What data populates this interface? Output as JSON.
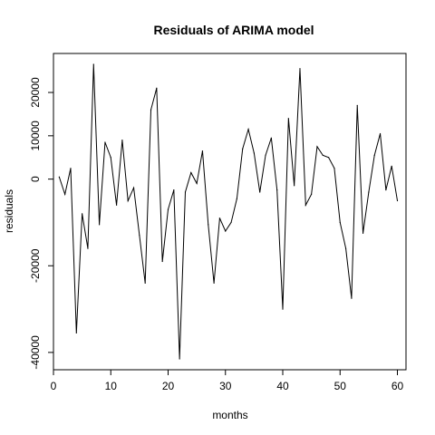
{
  "chart_data": {
    "type": "line",
    "title": "Residuals of ARIMA model",
    "xlabel": "months",
    "ylabel": "residuals",
    "xlim": [
      0,
      61.5
    ],
    "ylim": [
      -44000,
      29000
    ],
    "x_ticks": [
      0,
      10,
      20,
      30,
      40,
      50,
      60
    ],
    "y_ticks": [
      -40000,
      -20000,
      0,
      10000,
      20000
    ],
    "y_tick_labels": [
      "-40000",
      "-20000",
      "0",
      "10000",
      "20000"
    ],
    "grid": false,
    "legend": "none",
    "series": [
      {
        "x": [
          1,
          2,
          3,
          4,
          5,
          6,
          7,
          8,
          9,
          10,
          11,
          12,
          13,
          14,
          15,
          16,
          17,
          18,
          19,
          20,
          21,
          22,
          23,
          24,
          25,
          26,
          27,
          28,
          29,
          30,
          31,
          32,
          33,
          34,
          35,
          36,
          37,
          38,
          39,
          40,
          41,
          42,
          43,
          44,
          45,
          46,
          47,
          48,
          49,
          50,
          51,
          52,
          53,
          54,
          55,
          56,
          57,
          58,
          59,
          60
        ],
        "values": [
          500,
          -3500,
          2500,
          -35500,
          -8000,
          -16000,
          26500,
          -10500,
          8500,
          5000,
          -6000,
          9000,
          -5000,
          -2000,
          -13000,
          -24000,
          16000,
          21000,
          -19000,
          -7000,
          -2500,
          -41500,
          -3000,
          1500,
          -1000,
          6500,
          -10500,
          -24000,
          -9000,
          -12000,
          -10000,
          -4500,
          7000,
          11500,
          6000,
          -3000,
          5500,
          9500,
          -2500,
          -30000,
          14000,
          -1500,
          25500,
          -6000,
          -3500,
          7500,
          5500,
          5000,
          2500,
          -10000,
          -16000,
          -27500,
          17000,
          -12500,
          -3000,
          5500,
          10500,
          -2500,
          3000,
          -5000
        ]
      }
    ],
    "line_color": "#000000"
  }
}
